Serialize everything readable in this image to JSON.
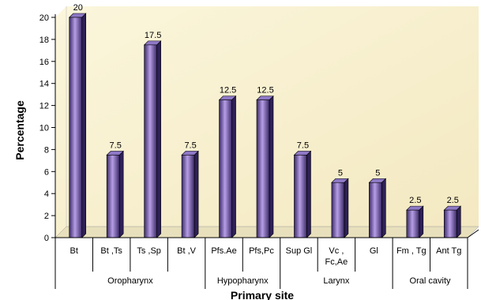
{
  "chart_data": {
    "type": "bar",
    "title": "",
    "xlabel": "Primary site",
    "ylabel": "Percentage",
    "ylim": [
      0,
      20
    ],
    "yticks": [
      0,
      2,
      4,
      6,
      8,
      10,
      12,
      14,
      16,
      18,
      20
    ],
    "grid": false,
    "three_d": true,
    "categories": [
      [
        "Bt"
      ],
      [
        "Bt ,Ts"
      ],
      [
        "Ts ,Sp"
      ],
      [
        "Bt ,V"
      ],
      [
        "Pfs.Ae"
      ],
      [
        "Pfs,Pc"
      ],
      [
        "Sup Gl"
      ],
      [
        "Vc ,",
        "Fc,Ae"
      ],
      [
        "Gl"
      ],
      [
        "Fm , Tg"
      ],
      [
        "Ant Tg"
      ]
    ],
    "values": [
      20,
      7.5,
      17.5,
      7.5,
      12.5,
      12.5,
      7.5,
      5,
      5,
      2.5,
      2.5
    ],
    "data_labels": [
      "20",
      "7.5",
      "17.5",
      "7.5",
      "12.5",
      "12.5",
      "7.5",
      "5",
      "5",
      "2.5",
      "2.5"
    ],
    "groups": [
      {
        "label": "Oropharynx",
        "start": 0,
        "end": 3
      },
      {
        "label": "Hypopharynx",
        "start": 4,
        "end": 5
      },
      {
        "label": "Larynx",
        "start": 6,
        "end": 8
      },
      {
        "label": "Oral cavity",
        "start": 9,
        "end": 10
      }
    ],
    "colors": {
      "plot_background": "#f8f0d0",
      "wall": "#fbf6dc",
      "bar_dark": "#3a2a66",
      "bar_light": "#b79ee6",
      "bar_side": "#2e2058",
      "bar_top": "#8e78c6"
    }
  }
}
